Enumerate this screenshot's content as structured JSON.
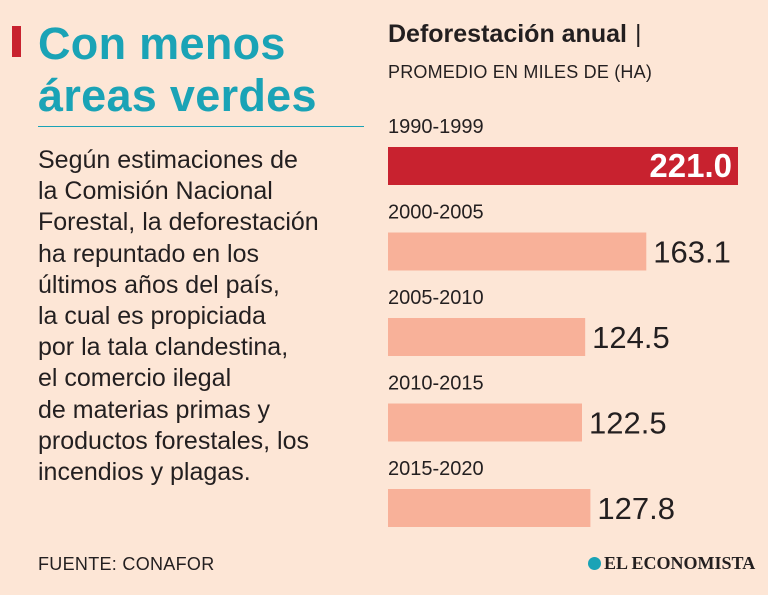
{
  "headline": {
    "lines": [
      "Con menos",
      "áreas verdes"
    ]
  },
  "body_lines": [
    "Según estimaciones de",
    "la Comisión Nacional",
    "Forestal, la deforestación",
    "ha repuntado en los",
    "últimos años del país,",
    "la cual es propiciada",
    "por la tala clandestina,",
    "el comercio ilegal",
    "de materias primas y",
    "productos forestales, los",
    "incendios y plagas."
  ],
  "source": "FUENTE: CONAFOR",
  "logo": {
    "text": "EL ECONOMISTA",
    "icon": "globe-icon"
  },
  "colors": {
    "background": "#fde6d6",
    "accent_red": "#c8222f",
    "teal": "#1aa3b6",
    "bar": "#f8b199",
    "highlight_bar": "#c8222f",
    "text": "#231f20"
  },
  "chart_data": {
    "type": "bar",
    "orientation": "horizontal",
    "title": "Deforestación anual",
    "title_separator": "|",
    "subtitle": "PROMEDIO EN MILES DE (HA)",
    "categories": [
      "1990-1999",
      "2000-2005",
      "2005-2010",
      "2010-2015",
      "2015-2020"
    ],
    "values": [
      221.0,
      163.1,
      124.5,
      122.5,
      127.8
    ],
    "value_labels": [
      "221.0",
      "163.1",
      "124.5",
      "122.5",
      "127.8"
    ],
    "highlight_index": 0,
    "xlim": [
      0,
      221.0
    ],
    "grid": false,
    "legend": "none"
  }
}
